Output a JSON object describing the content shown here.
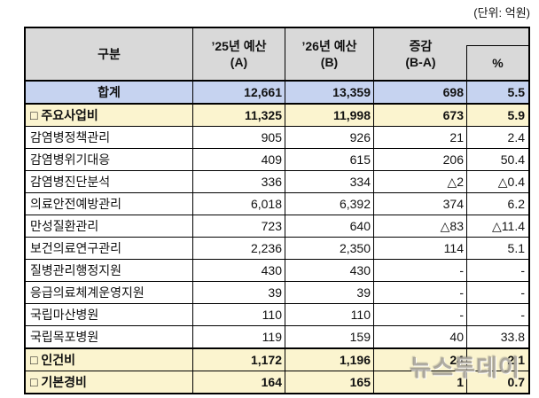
{
  "unit_label": "(단위: 억원)",
  "watermark": "뉴스투데이",
  "colors": {
    "header_bg": "#d9d9d9",
    "total_row_bg": "#c6d3f0",
    "section_row_bg": "#fbf4cf",
    "border": "#000000"
  },
  "table": {
    "header": {
      "category": "구분",
      "budget_2025_line1": "’25년 예산",
      "budget_2025_line2": "(A)",
      "budget_2026_line1": "’26년 예산",
      "budget_2026_line2": "(B)",
      "change_line1": "증감",
      "change_line2": "(B-A)",
      "percent": "%"
    },
    "rows": [
      {
        "label": "합계",
        "a": "12,661",
        "b": "13,359",
        "diff": "698",
        "pct": "5.5",
        "style": "total"
      },
      {
        "label": "□ 주요사업비",
        "a": "11,325",
        "b": "11,998",
        "diff": "673",
        "pct": "5.9",
        "style": "section"
      },
      {
        "label": "감염병정책관리",
        "a": "905",
        "b": "926",
        "diff": "21",
        "pct": "2.4",
        "style": "normal"
      },
      {
        "label": "감염병위기대응",
        "a": "409",
        "b": "615",
        "diff": "206",
        "pct": "50.4",
        "style": "normal"
      },
      {
        "label": "감염병진단분석",
        "a": "336",
        "b": "334",
        "diff": "△2",
        "pct": "△0.4",
        "style": "normal"
      },
      {
        "label": "의료안전예방관리",
        "a": "6,018",
        "b": "6,392",
        "diff": "374",
        "pct": "6.2",
        "style": "normal"
      },
      {
        "label": "만성질환관리",
        "a": "723",
        "b": "640",
        "diff": "△83",
        "pct": "△11.4",
        "style": "normal"
      },
      {
        "label": "보건의료연구관리",
        "a": "2,236",
        "b": "2,350",
        "diff": "114",
        "pct": "5.1",
        "style": "normal"
      },
      {
        "label": "질병관리행정지원",
        "a": "430",
        "b": "430",
        "diff": "-",
        "pct": "-",
        "style": "normal"
      },
      {
        "label": "응급의료체계운영지원",
        "a": "39",
        "b": "39",
        "diff": "-",
        "pct": "-",
        "style": "normal"
      },
      {
        "label": "국립마산병원",
        "a": "110",
        "b": "110",
        "diff": "-",
        "pct": "-",
        "style": "normal"
      },
      {
        "label": "국립목포병원",
        "a": "119",
        "b": "159",
        "diff": "40",
        "pct": "33.8",
        "style": "normal"
      },
      {
        "label": "□ 인건비",
        "a": "1,172",
        "b": "1,196",
        "diff": "24",
        "pct": "2.1",
        "style": "section"
      },
      {
        "label": "□ 기본경비",
        "a": "164",
        "b": "165",
        "diff": "1",
        "pct": "0.7",
        "style": "section"
      }
    ]
  }
}
